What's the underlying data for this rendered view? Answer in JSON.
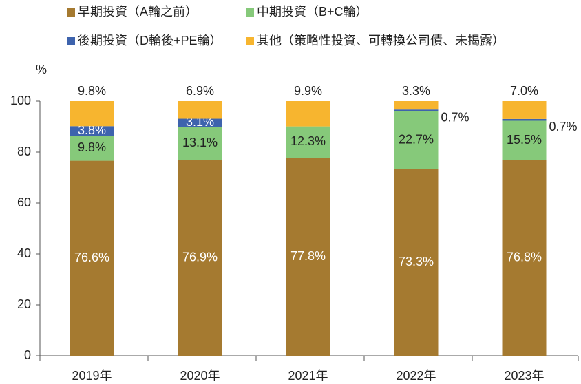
{
  "chart_data": {
    "type": "stacked_bar",
    "y_label": "%",
    "categories": [
      "2019年",
      "2020年",
      "2021年",
      "2022年",
      "2023年"
    ],
    "series": [
      {
        "name": "早期投資（A輪之前）",
        "color": "#a57a30",
        "values": [
          76.6,
          76.9,
          77.8,
          73.3,
          76.8
        ],
        "value_labels": [
          "76.6%",
          "76.9%",
          "77.8%",
          "73.3%",
          "76.8%"
        ]
      },
      {
        "name": "中期投資（B+C輪）",
        "color": "#86c97a",
        "values": [
          9.8,
          13.1,
          12.3,
          22.7,
          15.5
        ],
        "value_labels": [
          "9.8%",
          "13.1%",
          "12.3%",
          "22.7%",
          "15.5%"
        ]
      },
      {
        "name": "後期投資（D輪後+PE輪）",
        "color": "#3e63ad",
        "values": [
          3.8,
          3.1,
          null,
          0.7,
          0.7
        ],
        "value_labels": [
          "3.8%",
          "3.1%",
          null,
          "0.7%",
          "0.7%"
        ]
      },
      {
        "name": "其他（策略性投資、可轉換公司債、未揭露）",
        "color": "#f7b52f",
        "values": [
          9.8,
          6.9,
          9.9,
          3.3,
          7.0
        ],
        "value_labels": [
          "9.8%",
          "6.9%",
          "9.9%",
          "3.3%",
          "7.0%"
        ]
      }
    ],
    "ylim": [
      0,
      100
    ],
    "yticks": [
      0,
      20,
      40,
      60,
      80,
      100
    ]
  }
}
